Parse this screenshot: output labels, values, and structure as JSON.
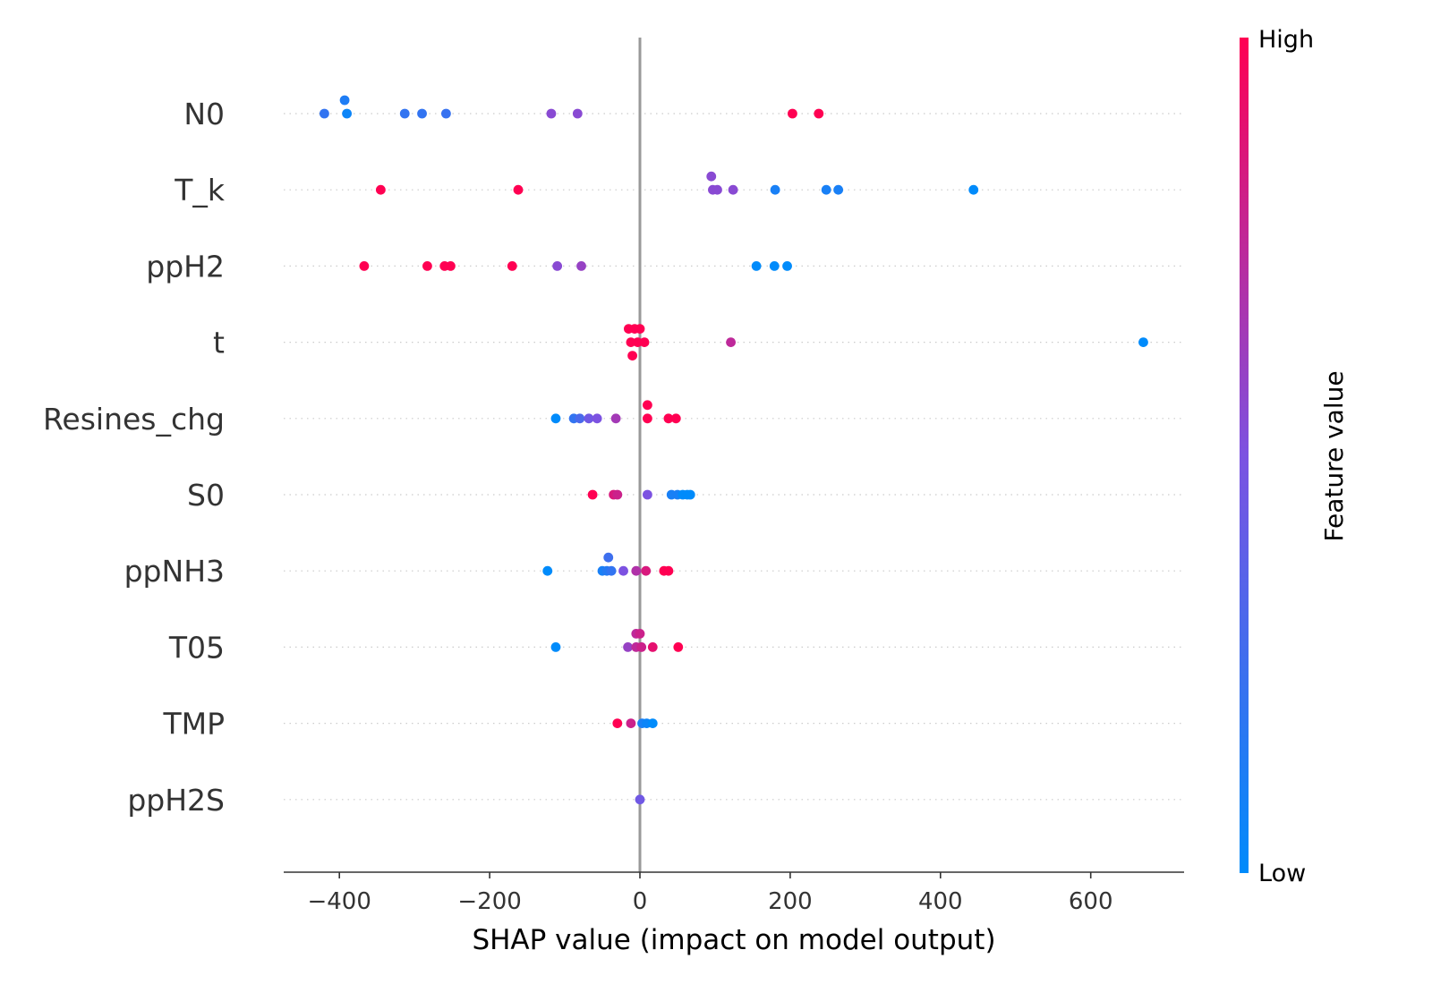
{
  "chart_data": {
    "type": "scatter",
    "subtype": "shap-beeswarm",
    "xlabel": "SHAP value (impact on model output)",
    "xlim": [
      -475,
      725
    ],
    "xticks": [
      -400,
      -200,
      0,
      200,
      400,
      600
    ],
    "xtick_labels": [
      "−400",
      "−200",
      "0",
      "200",
      "400",
      "600"
    ],
    "colorbar": {
      "label": "Feature value",
      "high_label": "High",
      "low_label": "Low",
      "colors": [
        "#008bfb",
        "#7c52e1",
        "#ff0052"
      ]
    },
    "zero_line_color": "#999999",
    "features": [
      {
        "name": "N0",
        "points": [
          {
            "x": -420,
            "v": 0.2
          },
          {
            "x": -393,
            "v": 0.12,
            "row": 1
          },
          {
            "x": -390,
            "v": 0.05
          },
          {
            "x": -313,
            "v": 0.2
          },
          {
            "x": -290,
            "v": 0.2
          },
          {
            "x": -258,
            "v": 0.22
          },
          {
            "x": -118,
            "v": 0.55
          },
          {
            "x": -83,
            "v": 0.55
          },
          {
            "x": 203,
            "v": 1.0
          },
          {
            "x": 238,
            "v": 1.0
          }
        ]
      },
      {
        "name": "T_k",
        "points": [
          {
            "x": -345,
            "v": 1.0
          },
          {
            "x": -162,
            "v": 1.0
          },
          {
            "x": 95,
            "v": 0.55,
            "row": 1
          },
          {
            "x": 97,
            "v": 0.55
          },
          {
            "x": 103,
            "v": 0.55
          },
          {
            "x": 124,
            "v": 0.55
          },
          {
            "x": 180,
            "v": 0.1
          },
          {
            "x": 248,
            "v": 0.1
          },
          {
            "x": 264,
            "v": 0.1
          },
          {
            "x": 444,
            "v": 0.0
          }
        ]
      },
      {
        "name": "ppH2",
        "points": [
          {
            "x": -367,
            "v": 1.0
          },
          {
            "x": -283,
            "v": 1.0
          },
          {
            "x": -260,
            "v": 1.0
          },
          {
            "x": -252,
            "v": 1.0
          },
          {
            "x": -170,
            "v": 1.0
          },
          {
            "x": -110,
            "v": 0.55
          },
          {
            "x": -78,
            "v": 0.6
          },
          {
            "x": 155,
            "v": 0.0
          },
          {
            "x": 179,
            "v": 0.0
          },
          {
            "x": 196,
            "v": 0.0
          }
        ]
      },
      {
        "name": "t",
        "points": [
          {
            "x": -15,
            "v": 1.0,
            "row": 1
          },
          {
            "x": -7,
            "v": 1.0,
            "row": 1
          },
          {
            "x": 0,
            "v": 1.0,
            "row": 1
          },
          {
            "x": -12,
            "v": 1.0
          },
          {
            "x": -3,
            "v": 1.0
          },
          {
            "x": 6,
            "v": 1.0
          },
          {
            "x": -10,
            "v": 1.0,
            "row": -1
          },
          {
            "x": 121,
            "v": 0.75
          },
          {
            "x": 670,
            "v": 0.0
          }
        ]
      },
      {
        "name": "Resines_chg",
        "points": [
          {
            "x": 10,
            "v": 1.0,
            "row": 1
          },
          {
            "x": -112,
            "v": 0.0
          },
          {
            "x": -88,
            "v": 0.2
          },
          {
            "x": -80,
            "v": 0.3
          },
          {
            "x": -68,
            "v": 0.45
          },
          {
            "x": -57,
            "v": 0.5
          },
          {
            "x": -32,
            "v": 0.65
          },
          {
            "x": 10,
            "v": 1.0
          },
          {
            "x": 38,
            "v": 1.0
          },
          {
            "x": 48,
            "v": 1.0
          }
        ]
      },
      {
        "name": "S0",
        "points": [
          {
            "x": -63,
            "v": 1.0
          },
          {
            "x": -35,
            "v": 0.85
          },
          {
            "x": -30,
            "v": 0.8
          },
          {
            "x": 10,
            "v": 0.5
          },
          {
            "x": 42,
            "v": 0.1
          },
          {
            "x": 50,
            "v": 0.1
          },
          {
            "x": 57,
            "v": 0.0
          },
          {
            "x": 63,
            "v": 0.0
          },
          {
            "x": 67,
            "v": 0.0
          }
        ]
      },
      {
        "name": "ppNH3",
        "points": [
          {
            "x": -42,
            "v": 0.25,
            "row": 1
          },
          {
            "x": -123,
            "v": 0.0
          },
          {
            "x": -50,
            "v": 0.1
          },
          {
            "x": -44,
            "v": 0.15
          },
          {
            "x": -38,
            "v": 0.2
          },
          {
            "x": -22,
            "v": 0.5
          },
          {
            "x": -5,
            "v": 0.7
          },
          {
            "x": 8,
            "v": 0.85
          },
          {
            "x": 32,
            "v": 1.0
          },
          {
            "x": 38,
            "v": 1.0
          }
        ]
      },
      {
        "name": "T05",
        "points": [
          {
            "x": -5,
            "v": 0.75,
            "row": 1
          },
          {
            "x": 0,
            "v": 0.8,
            "row": 1
          },
          {
            "x": -112,
            "v": 0.0
          },
          {
            "x": -16,
            "v": 0.6
          },
          {
            "x": -5,
            "v": 0.75
          },
          {
            "x": 2,
            "v": 0.8
          },
          {
            "x": 17,
            "v": 0.9
          },
          {
            "x": 51,
            "v": 1.0
          }
        ]
      },
      {
        "name": "TMP",
        "points": [
          {
            "x": -30,
            "v": 1.0
          },
          {
            "x": -12,
            "v": 0.8
          },
          {
            "x": 3,
            "v": 0.1
          },
          {
            "x": 9,
            "v": 0.05
          },
          {
            "x": 17,
            "v": 0.0
          }
        ]
      },
      {
        "name": "ppH2S",
        "points": [
          {
            "x": 0,
            "v": 0.45
          }
        ]
      }
    ]
  }
}
